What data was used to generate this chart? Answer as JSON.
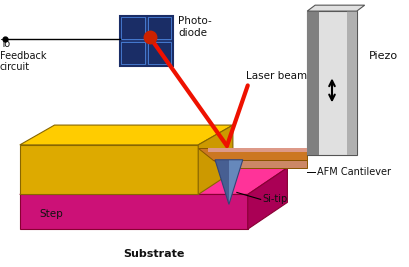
{
  "background_color": "#ffffff",
  "labels": {
    "photodiode": "Photo-\ndiode",
    "laser_beam": "Laser beam",
    "piezo": "Piezo",
    "afm_cantilever": "AFM Cantilever",
    "si_tip": "Si-tip",
    "step": "Step",
    "substrate": "Substrate",
    "feedback": "To\nFeedback\ncircuit"
  },
  "colors": {
    "photodiode_frame": "#4477cc",
    "photodiode_dark": "#1a2d66",
    "laser_red": "#ee1100",
    "piezo_light": "#e0e0e0",
    "piezo_mid": "#b0b0b0",
    "piezo_dark": "#808080",
    "cantilever_gold": "#cc7722",
    "cantilever_orange": "#dd8833",
    "cantilever_pink": "#cc8866",
    "cantilever_salmon": "#dd9988",
    "step_yellow_top": "#ffcc00",
    "step_yellow_front": "#ddaa00",
    "step_yellow_side": "#cc9900",
    "substrate_pink_top": "#ff3399",
    "substrate_pink_front": "#cc1177",
    "substrate_pink_side": "#aa0055",
    "tip_blue_light": "#6688bb",
    "tip_blue_dark": "#334477",
    "dot_red": "#cc2200",
    "text_color": "#111111",
    "black": "#000000"
  }
}
